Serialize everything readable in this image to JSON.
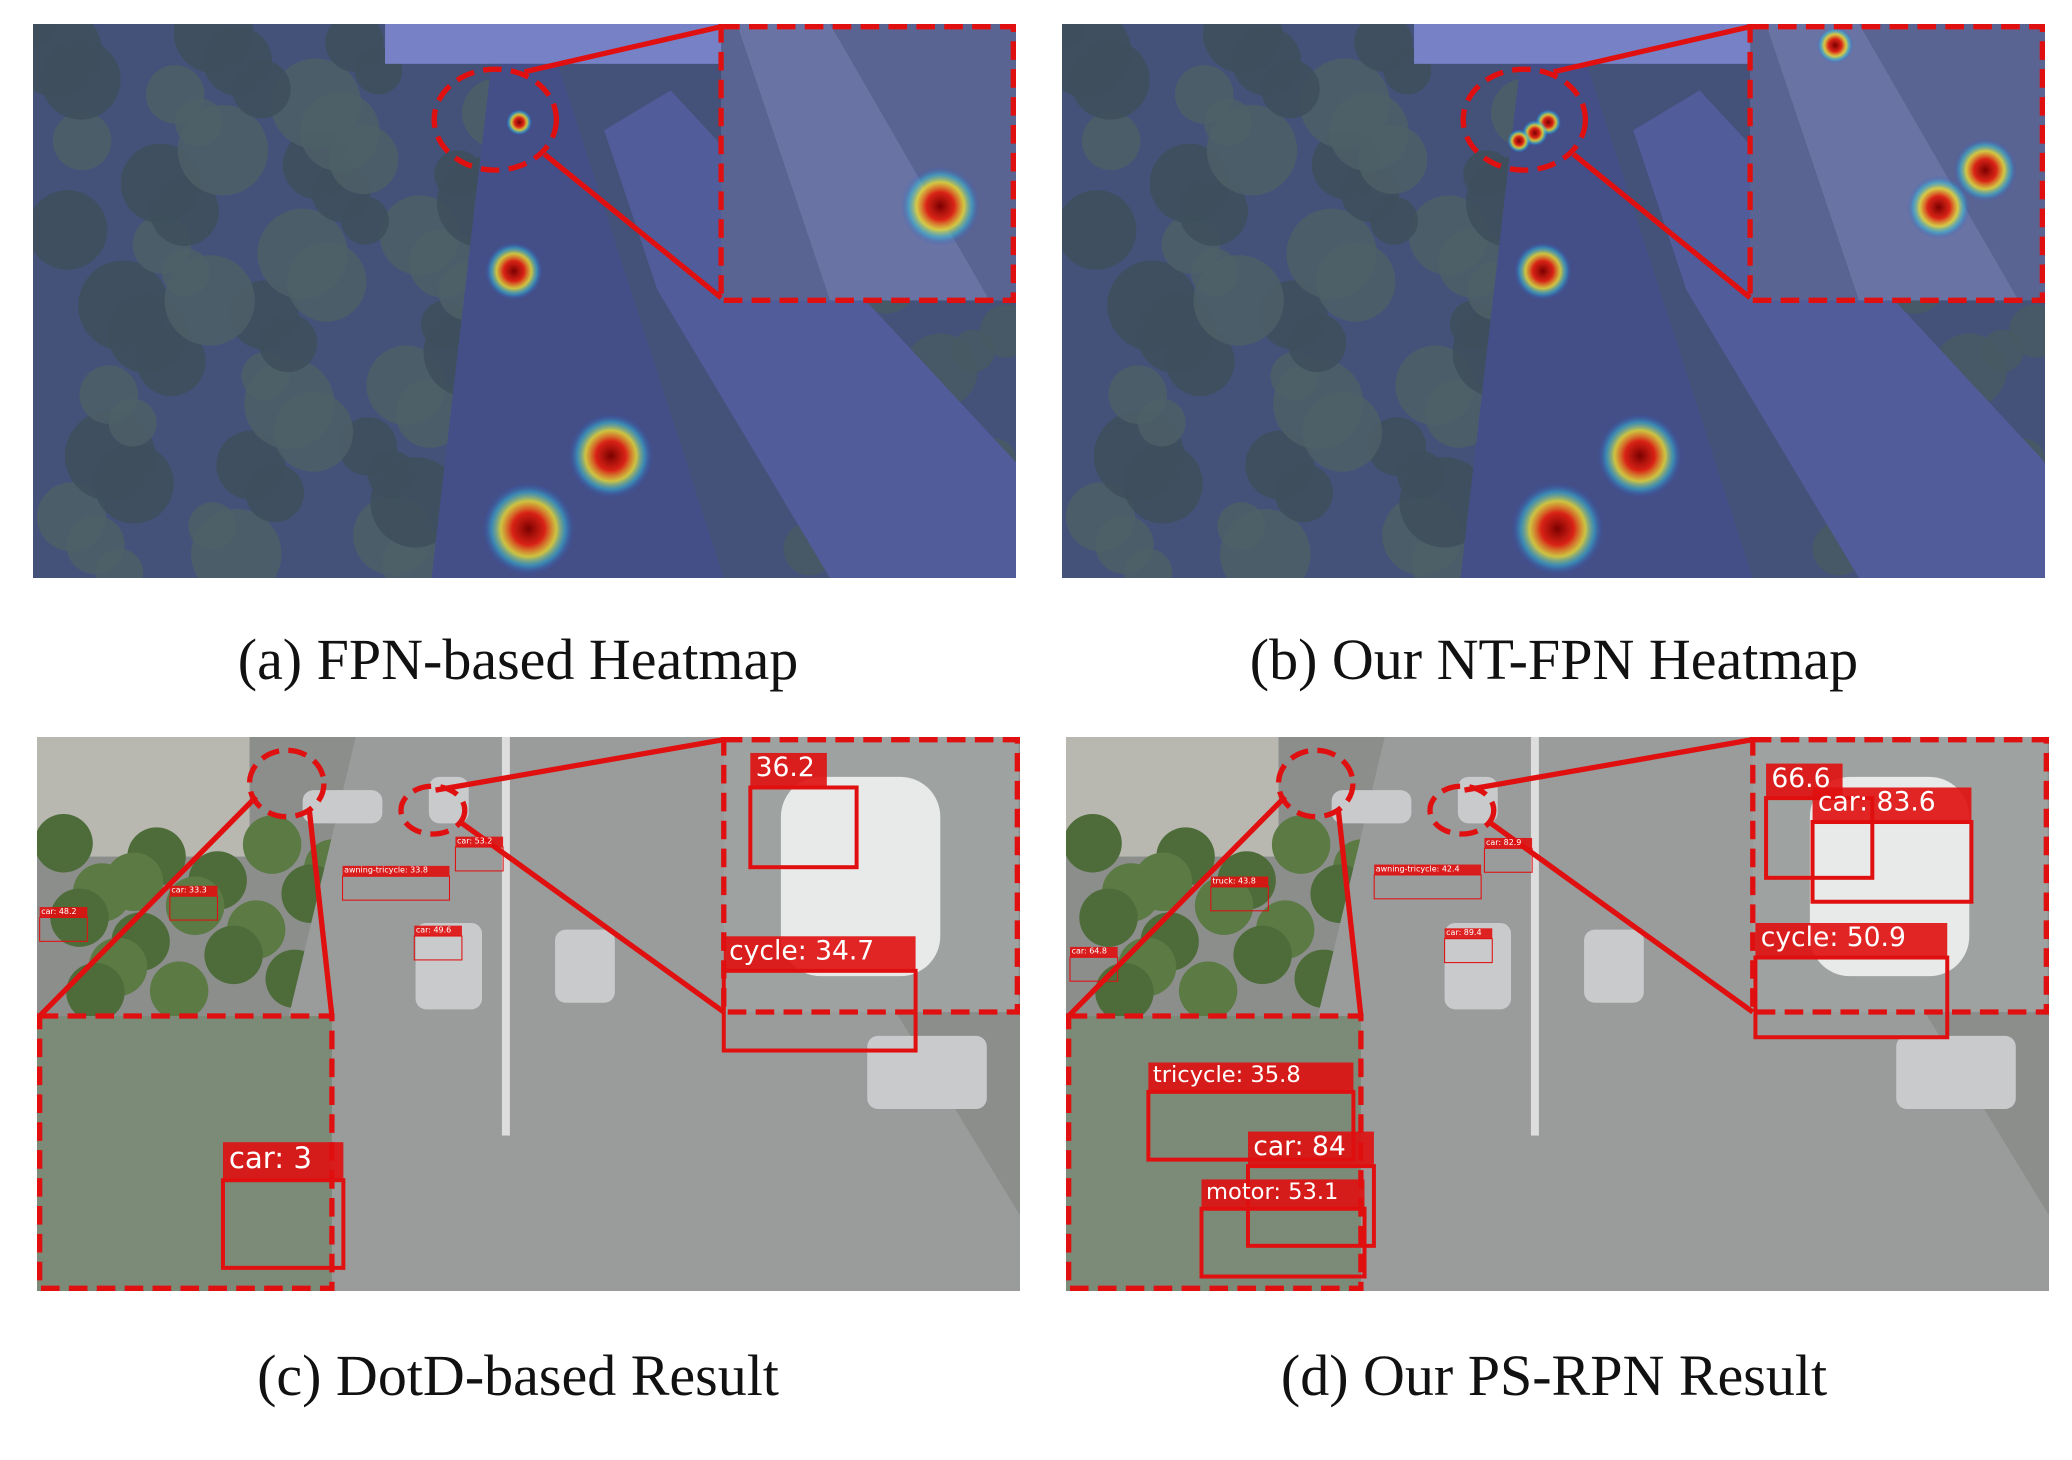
{
  "panels": [
    {
      "caption": "(a) FPN-based Heatmap"
    },
    {
      "caption": "(b) Our NT-FPN Heatmap"
    },
    {
      "caption": "(c) DotD-based Result",
      "labels": [
        "36.2",
        "cycle: 34.7",
        "car: 3",
        "car: 33.3",
        "car: 48.2",
        "car: 49.6",
        "car: 53.2",
        "awning-tricycle: 33.8"
      ]
    },
    {
      "caption": "(d) Our PS-RPN Result",
      "labels": [
        "66.6",
        "car: 83.6",
        "cycle: 50.9",
        "tricycle: 35.8",
        "car: 84",
        "motor: 53.1",
        "truck: 43.8",
        "car: 64.8",
        "car: 89.4",
        "car: 82.9",
        "awning-tricycle: 42.4"
      ]
    }
  ]
}
